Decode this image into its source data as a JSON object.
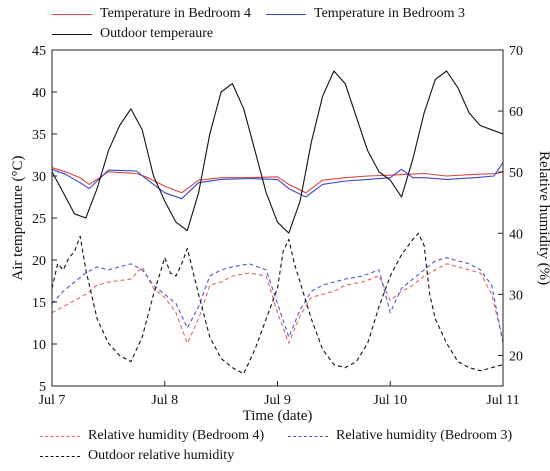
{
  "chart_data": {
    "type": "line",
    "xlabel": "Time (date)",
    "ylabel_left": "Air temperature (°C)",
    "ylabel_right": "Relative humidity (%)",
    "x_ticks": [
      "Jul 7",
      "Jul 8",
      "Jul 9",
      "Jul 10",
      "Jul 11"
    ],
    "xlim": [
      0,
      4
    ],
    "ylim_left": [
      5,
      45
    ],
    "ylim_right": [
      15,
      70
    ],
    "yticks_left": [
      "5",
      "10",
      "15",
      "20",
      "25",
      "30",
      "35",
      "40",
      "45"
    ],
    "yticks_right": [
      "20",
      "30",
      "40",
      "50",
      "60",
      "70"
    ],
    "series": [
      {
        "name": "Temperature in Bedroom 4",
        "axis": "left",
        "color": "#d9453f",
        "style": "solid",
        "x": [
          0,
          0.12,
          0.25,
          0.33,
          0.5,
          0.75,
          0.85,
          1.0,
          1.15,
          1.3,
          1.5,
          1.75,
          2.0,
          2.1,
          2.25,
          2.4,
          2.6,
          2.8,
          3.0,
          3.15,
          3.3,
          3.5,
          3.75,
          3.95,
          4.0
        ],
        "y": [
          31.0,
          30.5,
          29.8,
          29.0,
          30.5,
          30.3,
          29.8,
          28.8,
          28.0,
          29.5,
          29.8,
          29.8,
          29.9,
          29.0,
          28.0,
          29.5,
          29.8,
          30.0,
          30.1,
          30.2,
          30.3,
          30.0,
          30.2,
          30.3,
          30.6
        ]
      },
      {
        "name": "Temperature in Bedroom 3",
        "axis": "left",
        "color": "#3b46c4",
        "style": "solid",
        "x": [
          0,
          0.12,
          0.25,
          0.33,
          0.5,
          0.75,
          0.85,
          1.0,
          1.15,
          1.3,
          1.5,
          1.75,
          2.0,
          2.1,
          2.25,
          2.4,
          2.6,
          2.8,
          3.0,
          3.1,
          3.2,
          3.3,
          3.5,
          3.75,
          3.92,
          4.0
        ],
        "y": [
          30.8,
          30.2,
          29.2,
          28.5,
          30.7,
          30.6,
          29.5,
          28.0,
          27.3,
          29.2,
          29.6,
          29.7,
          29.6,
          28.5,
          27.5,
          29.0,
          29.4,
          29.6,
          29.8,
          30.8,
          29.8,
          29.8,
          29.6,
          29.8,
          30.0,
          31.6
        ]
      },
      {
        "name": "Outdoor temperaure",
        "axis": "left",
        "color": "#111111",
        "style": "solid",
        "x": [
          0,
          0.1,
          0.2,
          0.3,
          0.4,
          0.5,
          0.6,
          0.7,
          0.8,
          0.9,
          1.0,
          1.1,
          1.2,
          1.3,
          1.4,
          1.5,
          1.6,
          1.7,
          1.8,
          1.9,
          2.0,
          2.1,
          2.2,
          2.3,
          2.4,
          2.5,
          2.6,
          2.7,
          2.8,
          2.9,
          3.0,
          3.1,
          3.2,
          3.3,
          3.4,
          3.5,
          3.6,
          3.7,
          3.8,
          3.9,
          4.0
        ],
        "y": [
          30.5,
          28.0,
          25.5,
          25.0,
          28.5,
          33.0,
          36.0,
          38.0,
          35.5,
          30.0,
          27.0,
          24.5,
          23.5,
          28.0,
          35.0,
          40.0,
          41.0,
          38.0,
          33.0,
          28.0,
          24.5,
          23.2,
          27.0,
          34.0,
          39.5,
          42.5,
          41.0,
          37.0,
          33.0,
          30.5,
          29.5,
          27.5,
          32.0,
          37.5,
          41.5,
          42.5,
          40.5,
          37.5,
          36.0,
          35.5,
          35.0
        ]
      },
      {
        "name": "Relative humidity (Bedroom 4)",
        "axis": "right",
        "color": "#e2665e",
        "style": "dashed",
        "x": [
          0,
          0.1,
          0.2,
          0.3,
          0.4,
          0.5,
          0.7,
          0.8,
          0.9,
          1.0,
          1.1,
          1.2,
          1.3,
          1.4,
          1.5,
          1.6,
          1.75,
          1.9,
          2.0,
          2.1,
          2.2,
          2.3,
          2.4,
          2.5,
          2.6,
          2.75,
          2.9,
          3.0,
          3.1,
          3.2,
          3.3,
          3.4,
          3.5,
          3.6,
          3.7,
          3.8,
          3.9,
          4.0
        ],
        "y": [
          27.0,
          28.0,
          29.0,
          30.0,
          31.5,
          32.0,
          32.5,
          34.5,
          31.0,
          29.5,
          27.0,
          22.0,
          26.0,
          31.5,
          32.0,
          33.0,
          33.5,
          33.0,
          27.0,
          22.0,
          26.5,
          29.5,
          30.0,
          30.5,
          31.5,
          32.0,
          33.0,
          29.0,
          30.5,
          31.5,
          33.0,
          34.0,
          35.0,
          34.5,
          34.0,
          33.5,
          30.0,
          22.5
        ]
      },
      {
        "name": "Relative humidity (Bedroom 3)",
        "axis": "right",
        "color": "#4a5bd0",
        "style": "dashed",
        "x": [
          0,
          0.1,
          0.2,
          0.3,
          0.4,
          0.5,
          0.7,
          0.8,
          0.9,
          1.0,
          1.1,
          1.2,
          1.3,
          1.4,
          1.5,
          1.6,
          1.75,
          1.9,
          2.0,
          2.1,
          2.2,
          2.3,
          2.4,
          2.5,
          2.6,
          2.75,
          2.9,
          3.0,
          3.1,
          3.2,
          3.3,
          3.4,
          3.5,
          3.6,
          3.7,
          3.8,
          3.9,
          4.0
        ],
        "y": [
          28.5,
          30.5,
          32.0,
          33.5,
          34.5,
          34.0,
          35.0,
          34.0,
          31.5,
          30.0,
          28.5,
          24.5,
          28.0,
          33.0,
          34.0,
          34.5,
          35.0,
          34.0,
          28.5,
          23.0,
          27.5,
          30.5,
          31.5,
          32.0,
          32.5,
          33.0,
          34.0,
          27.0,
          31.0,
          32.5,
          34.0,
          35.5,
          36.0,
          35.5,
          35.0,
          34.0,
          31.5,
          22.0
        ]
      },
      {
        "name": "Outdoor relative humidity",
        "axis": "right",
        "color": "#111111",
        "style": "dashed",
        "x": [
          0,
          0.05,
          0.1,
          0.15,
          0.2,
          0.25,
          0.3,
          0.35,
          0.4,
          0.5,
          0.6,
          0.7,
          0.8,
          0.9,
          1.0,
          1.05,
          1.1,
          1.15,
          1.2,
          1.3,
          1.4,
          1.5,
          1.6,
          1.7,
          1.8,
          1.9,
          2.0,
          2.05,
          2.1,
          2.15,
          2.2,
          2.3,
          2.4,
          2.5,
          2.6,
          2.7,
          2.8,
          2.9,
          3.0,
          3.1,
          3.2,
          3.25,
          3.3,
          3.35,
          3.4,
          3.5,
          3.6,
          3.7,
          3.8,
          3.9,
          4.0
        ],
        "y": [
          31.0,
          35.0,
          34.0,
          36.0,
          37.0,
          39.5,
          34.0,
          30.0,
          26.0,
          22.0,
          20.0,
          19.0,
          23.0,
          30.0,
          36.0,
          33.5,
          33.0,
          35.0,
          37.5,
          30.0,
          23.0,
          19.5,
          18.0,
          17.0,
          21.0,
          26.0,
          31.0,
          37.0,
          39.0,
          35.0,
          32.0,
          26.0,
          21.0,
          18.5,
          18.0,
          19.0,
          22.0,
          28.0,
          33.0,
          36.5,
          39.0,
          40.0,
          38.0,
          30.0,
          26.0,
          22.0,
          19.0,
          18.0,
          17.5,
          18.0,
          18.5
        ]
      }
    ]
  }
}
